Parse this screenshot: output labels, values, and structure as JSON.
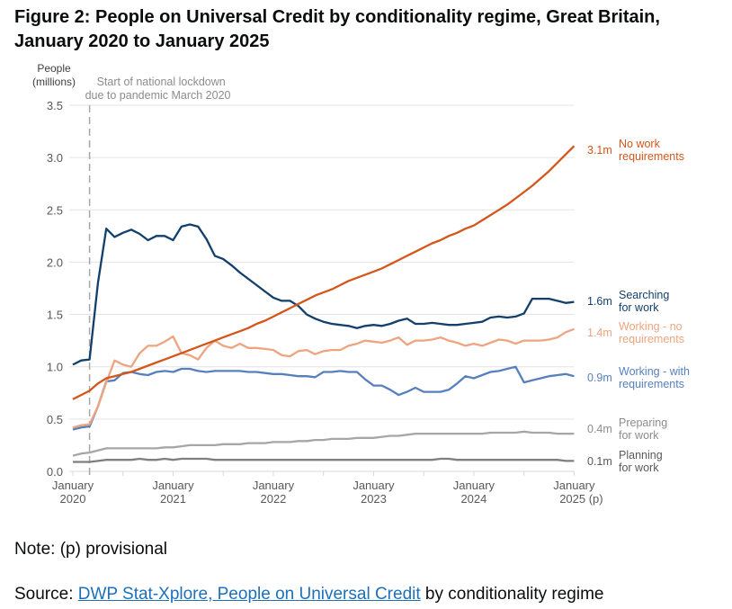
{
  "chart_data": {
    "type": "line",
    "title": "Figure 2: People on Universal Credit by conditionality regime, Great Britain, January 2020 to January 2025",
    "ylabel": "People (millions)",
    "ylabel_lines": [
      "People",
      "(millions)"
    ],
    "ylim": [
      0,
      3.5
    ],
    "yticks": [
      "0.0",
      "0.5",
      "1.0",
      "1.5",
      "2.0",
      "2.5",
      "3.0",
      "3.5"
    ],
    "xstart": "2020-01",
    "xend": "2025-01",
    "xtick_labels": [
      [
        "January",
        "2020"
      ],
      [
        "January",
        "2021"
      ],
      [
        "January",
        "2022"
      ],
      [
        "January",
        "2023"
      ],
      [
        "January",
        "2024"
      ],
      [
        "January",
        "2025 (p)"
      ]
    ],
    "grid": true,
    "annotation": {
      "date": "2020-03",
      "lines": [
        "Start of national lockdown",
        "due to pandemic March 2020"
      ]
    },
    "series": [
      {
        "name": "No work requirements",
        "label_lines": [
          "No work",
          "requirements"
        ],
        "end_label": "3.1m",
        "color": "#d4561a",
        "values": [
          0.69,
          0.73,
          0.77,
          0.84,
          0.89,
          0.91,
          0.93,
          0.95,
          0.98,
          1.01,
          1.04,
          1.07,
          1.1,
          1.13,
          1.16,
          1.19,
          1.22,
          1.25,
          1.28,
          1.31,
          1.34,
          1.37,
          1.41,
          1.44,
          1.48,
          1.52,
          1.56,
          1.6,
          1.64,
          1.68,
          1.71,
          1.74,
          1.78,
          1.82,
          1.85,
          1.88,
          1.91,
          1.94,
          1.98,
          2.02,
          2.06,
          2.1,
          2.14,
          2.18,
          2.21,
          2.25,
          2.28,
          2.32,
          2.35,
          2.4,
          2.45,
          2.5,
          2.55,
          2.61,
          2.67,
          2.73,
          2.8,
          2.87,
          2.95,
          3.03,
          3.11
        ]
      },
      {
        "name": "Searching for work",
        "label_lines": [
          "Searching",
          "for work"
        ],
        "end_label": "1.6m",
        "color": "#123f6b",
        "values": [
          1.02,
          1.06,
          1.07,
          1.8,
          2.32,
          2.24,
          2.28,
          2.31,
          2.27,
          2.21,
          2.25,
          2.25,
          2.21,
          2.34,
          2.36,
          2.34,
          2.22,
          2.06,
          2.03,
          1.97,
          1.9,
          1.84,
          1.78,
          1.72,
          1.66,
          1.63,
          1.63,
          1.58,
          1.5,
          1.46,
          1.43,
          1.41,
          1.4,
          1.39,
          1.37,
          1.39,
          1.4,
          1.39,
          1.41,
          1.44,
          1.46,
          1.41,
          1.41,
          1.42,
          1.41,
          1.4,
          1.4,
          1.41,
          1.42,
          1.43,
          1.47,
          1.48,
          1.47,
          1.48,
          1.51,
          1.65,
          1.65,
          1.65,
          1.63,
          1.61,
          1.62
        ]
      },
      {
        "name": "Working - no requirements",
        "label_lines": [
          "Working - no",
          "requirements"
        ],
        "end_label": "1.4m",
        "color": "#eda47f",
        "values": [
          0.42,
          0.44,
          0.45,
          0.62,
          0.85,
          1.06,
          1.02,
          1.0,
          1.13,
          1.2,
          1.2,
          1.24,
          1.29,
          1.13,
          1.11,
          1.07,
          1.18,
          1.25,
          1.2,
          1.18,
          1.22,
          1.18,
          1.18,
          1.17,
          1.16,
          1.11,
          1.1,
          1.15,
          1.16,
          1.12,
          1.15,
          1.16,
          1.16,
          1.2,
          1.22,
          1.25,
          1.24,
          1.23,
          1.25,
          1.28,
          1.21,
          1.25,
          1.25,
          1.26,
          1.28,
          1.25,
          1.23,
          1.2,
          1.22,
          1.2,
          1.23,
          1.26,
          1.25,
          1.22,
          1.25,
          1.25,
          1.25,
          1.26,
          1.28,
          1.33,
          1.36
        ]
      },
      {
        "name": "Working - with requirements",
        "label_lines": [
          "Working - with",
          "requirements"
        ],
        "end_label": "0.9m",
        "color": "#5680bd",
        "values": [
          0.4,
          0.42,
          0.43,
          0.62,
          0.86,
          0.87,
          0.94,
          0.95,
          0.93,
          0.92,
          0.95,
          0.96,
          0.95,
          0.98,
          0.98,
          0.96,
          0.95,
          0.96,
          0.96,
          0.96,
          0.96,
          0.95,
          0.95,
          0.94,
          0.93,
          0.93,
          0.92,
          0.91,
          0.91,
          0.9,
          0.95,
          0.95,
          0.96,
          0.95,
          0.95,
          0.88,
          0.82,
          0.82,
          0.78,
          0.73,
          0.76,
          0.8,
          0.76,
          0.76,
          0.76,
          0.78,
          0.84,
          0.91,
          0.89,
          0.92,
          0.95,
          0.96,
          0.98,
          1.0,
          0.85,
          0.87,
          0.89,
          0.91,
          0.92,
          0.93,
          0.91
        ]
      },
      {
        "name": "Preparing for work",
        "label_lines": [
          "Preparing",
          "for work"
        ],
        "end_label": "0.4m",
        "color": "#a6a6a6",
        "values": [
          0.15,
          0.17,
          0.18,
          0.2,
          0.22,
          0.22,
          0.22,
          0.22,
          0.22,
          0.22,
          0.22,
          0.23,
          0.23,
          0.24,
          0.25,
          0.25,
          0.25,
          0.25,
          0.26,
          0.26,
          0.26,
          0.27,
          0.27,
          0.27,
          0.28,
          0.28,
          0.28,
          0.29,
          0.29,
          0.3,
          0.3,
          0.31,
          0.31,
          0.31,
          0.32,
          0.32,
          0.32,
          0.33,
          0.34,
          0.34,
          0.35,
          0.36,
          0.36,
          0.36,
          0.36,
          0.36,
          0.36,
          0.36,
          0.36,
          0.36,
          0.37,
          0.37,
          0.37,
          0.37,
          0.38,
          0.37,
          0.37,
          0.37,
          0.36,
          0.36,
          0.36
        ]
      },
      {
        "name": "Planning for work",
        "label_lines": [
          "Planning",
          "for work"
        ],
        "end_label": "0.1m",
        "color": "#7f7f7f",
        "values": [
          0.09,
          0.09,
          0.09,
          0.1,
          0.11,
          0.11,
          0.11,
          0.11,
          0.12,
          0.11,
          0.11,
          0.12,
          0.11,
          0.12,
          0.12,
          0.12,
          0.12,
          0.11,
          0.11,
          0.11,
          0.11,
          0.11,
          0.11,
          0.11,
          0.11,
          0.11,
          0.11,
          0.11,
          0.11,
          0.11,
          0.11,
          0.11,
          0.11,
          0.11,
          0.11,
          0.11,
          0.11,
          0.11,
          0.11,
          0.11,
          0.11,
          0.11,
          0.11,
          0.11,
          0.12,
          0.12,
          0.11,
          0.11,
          0.11,
          0.11,
          0.11,
          0.11,
          0.11,
          0.11,
          0.11,
          0.11,
          0.11,
          0.11,
          0.11,
          0.1,
          0.1
        ]
      }
    ]
  },
  "note": "Note: (p) provisional",
  "source": {
    "prefix": "Source: ",
    "link_text": "DWP Stat-Xplore, People on Universal Credit",
    "suffix": " by conditionality regime"
  }
}
